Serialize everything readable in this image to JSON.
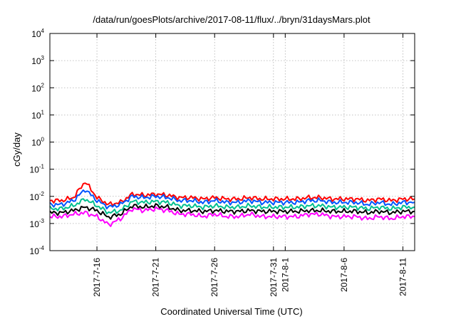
{
  "chart_data": {
    "type": "line",
    "title": "/data/run/goesPlots/archive/2017-08-11/flux/../bryn/31daysMars.plot",
    "xlabel": "Coordinated Universal Time (UTC)",
    "ylabel": "cGy/day",
    "yscale": "log",
    "ylim": [
      0.0001,
      10000
    ],
    "xlim": [
      "2017-07-12",
      "2017-08-12"
    ],
    "yticks": [
      {
        "base": "10",
        "exp": "-4",
        "value": 0.0001
      },
      {
        "base": "10",
        "exp": "-3",
        "value": 0.001
      },
      {
        "base": "10",
        "exp": "-2",
        "value": 0.01
      },
      {
        "base": "10",
        "exp": "-1",
        "value": 0.1
      },
      {
        "base": "10",
        "exp": "0",
        "value": 1
      },
      {
        "base": "10",
        "exp": "1",
        "value": 10
      },
      {
        "base": "10",
        "exp": "2",
        "value": 100
      },
      {
        "base": "10",
        "exp": "3",
        "value": 1000
      },
      {
        "base": "10",
        "exp": "4",
        "value": 10000
      }
    ],
    "xticks": [
      {
        "label": "2017-7-16",
        "date": "2017-07-16"
      },
      {
        "label": "2017-7-21",
        "date": "2017-07-21"
      },
      {
        "label": "2017-7-26",
        "date": "2017-07-26"
      },
      {
        "label": "2017-7-31",
        "date": "2017-07-31"
      },
      {
        "label": "2017-8-1",
        "date": "2017-08-01"
      },
      {
        "label": "2017-8-6",
        "date": "2017-08-06"
      },
      {
        "label": "2017-8-11",
        "date": "2017-08-11"
      }
    ],
    "grid": true,
    "x": [
      "2017-07-12",
      "2017-07-13",
      "2017-07-14",
      "2017-07-15",
      "2017-07-16",
      "2017-07-17",
      "2017-07-18",
      "2017-07-19",
      "2017-07-20",
      "2017-07-21",
      "2017-07-22",
      "2017-07-23",
      "2017-07-24",
      "2017-07-25",
      "2017-07-26",
      "2017-07-27",
      "2017-07-28",
      "2017-07-29",
      "2017-07-30",
      "2017-07-31",
      "2017-08-01",
      "2017-08-02",
      "2017-08-03",
      "2017-08-04",
      "2017-08-05",
      "2017-08-06",
      "2017-08-07",
      "2017-08-08",
      "2017-08-09",
      "2017-08-10",
      "2017-08-11",
      "2017-08-12"
    ],
    "series": [
      {
        "color": "#ff0000",
        "values": [
          0.007,
          0.007,
          0.009,
          0.035,
          0.009,
          0.005,
          0.006,
          0.012,
          0.011,
          0.012,
          0.011,
          0.009,
          0.009,
          0.008,
          0.009,
          0.008,
          0.008,
          0.009,
          0.008,
          0.008,
          0.008,
          0.008,
          0.009,
          0.009,
          0.008,
          0.008,
          0.008,
          0.007,
          0.008,
          0.007,
          0.008,
          0.008
        ]
      },
      {
        "color": "#0055ff",
        "values": [
          0.005,
          0.005,
          0.007,
          0.018,
          0.007,
          0.004,
          0.005,
          0.01,
          0.009,
          0.01,
          0.009,
          0.007,
          0.007,
          0.006,
          0.007,
          0.006,
          0.006,
          0.007,
          0.006,
          0.006,
          0.006,
          0.006,
          0.007,
          0.007,
          0.006,
          0.006,
          0.006,
          0.005,
          0.006,
          0.005,
          0.006,
          0.006
        ]
      },
      {
        "color": "#00c090",
        "values": [
          0.0035,
          0.0035,
          0.0045,
          0.008,
          0.0045,
          0.0025,
          0.003,
          0.0065,
          0.006,
          0.0065,
          0.006,
          0.0045,
          0.0045,
          0.004,
          0.0045,
          0.004,
          0.004,
          0.0045,
          0.004,
          0.004,
          0.004,
          0.004,
          0.0045,
          0.0045,
          0.004,
          0.004,
          0.004,
          0.0035,
          0.004,
          0.0035,
          0.004,
          0.004
        ]
      },
      {
        "color": "#000000",
        "values": [
          0.0025,
          0.0025,
          0.003,
          0.004,
          0.003,
          0.0017,
          0.0022,
          0.0045,
          0.004,
          0.0045,
          0.004,
          0.003,
          0.003,
          0.0028,
          0.003,
          0.0028,
          0.0028,
          0.003,
          0.0028,
          0.0028,
          0.0028,
          0.0028,
          0.003,
          0.003,
          0.0028,
          0.0028,
          0.0028,
          0.0025,
          0.0028,
          0.0025,
          0.0028,
          0.0028
        ]
      },
      {
        "color": "#ff00ff",
        "values": [
          0.0018,
          0.0018,
          0.0022,
          0.0025,
          0.0018,
          0.0009,
          0.0015,
          0.0035,
          0.003,
          0.0035,
          0.003,
          0.0022,
          0.0022,
          0.0018,
          0.0022,
          0.0018,
          0.0018,
          0.0022,
          0.0018,
          0.0018,
          0.0018,
          0.0018,
          0.0022,
          0.0022,
          0.0018,
          0.0018,
          0.0018,
          0.0015,
          0.0018,
          0.0015,
          0.0018,
          0.0018
        ]
      }
    ]
  }
}
